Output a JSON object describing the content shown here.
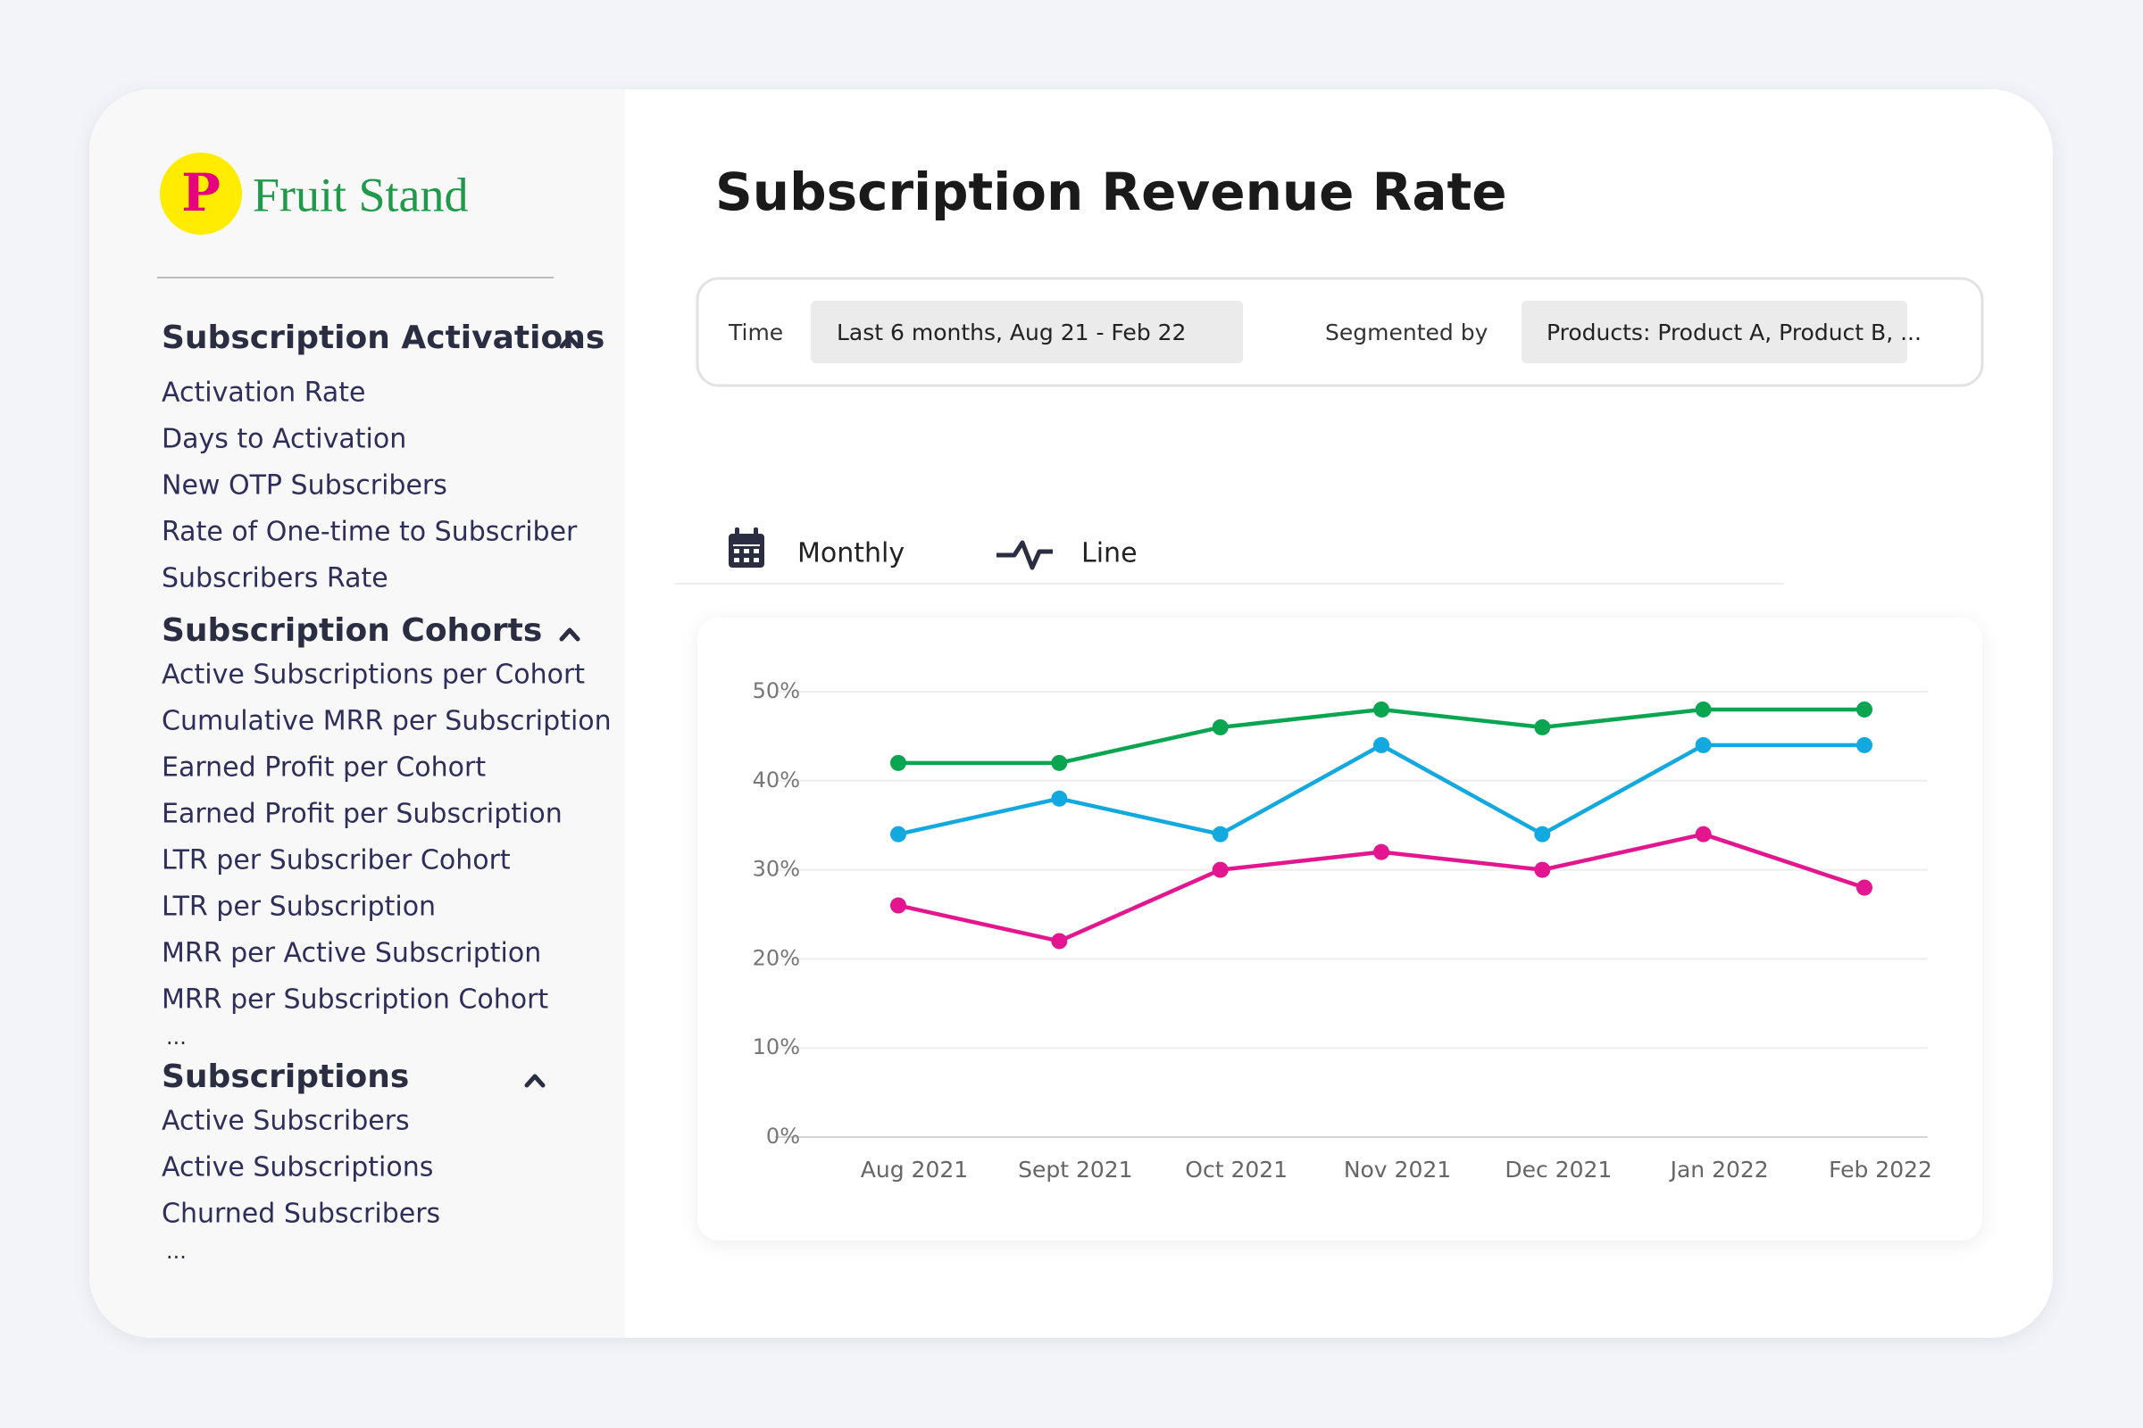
{
  "logo": {
    "letter": "P",
    "name": "Fruit Stand"
  },
  "sidebar": {
    "sections": [
      {
        "title": "Subscription Activations",
        "items": [
          "Activation Rate",
          "Days to Activation",
          "New OTP Subscribers",
          "Rate of One-time to Subscriber",
          "Subscribers Rate"
        ]
      },
      {
        "title": "Subscription Cohorts",
        "items": [
          "Active Subscriptions per Cohort",
          "Cumulative MRR per Subscription",
          "Earned Profit per Cohort",
          "Earned Profit per Subscription",
          "LTR per Subscriber Cohort",
          "LTR per Subscription",
          "MRR per Active Subscription",
          "MRR per Subscription Cohort"
        ],
        "more": "..."
      },
      {
        "title": "Subscriptions",
        "items": [
          "Active Subscribers",
          "Active Subscriptions",
          "Churned Subscribers"
        ],
        "more": "..."
      }
    ]
  },
  "header": {
    "title": "Subscription Revenue Rate"
  },
  "filters": {
    "time_label": "Time",
    "time_value": "Last 6 months, Aug 21 - Feb 22",
    "segment_label": "Segmented by",
    "segment_value": "Products: Product A, Product B, ..."
  },
  "toolbar": {
    "period": "Monthly",
    "chart_kind": "Line"
  },
  "chart_data": {
    "type": "line",
    "categories": [
      "Aug 2021",
      "Sept 2021",
      "Oct 2021",
      "Nov 2021",
      "Dec 2021",
      "Jan 2022",
      "Feb 2022"
    ],
    "series": [
      {
        "color": "#0aa550",
        "values": [
          42,
          42,
          46,
          48,
          46,
          48,
          48
        ]
      },
      {
        "color": "#12a8e0",
        "values": [
          34,
          38,
          34,
          44,
          34,
          44,
          44
        ]
      },
      {
        "color": "#e4168f",
        "values": [
          26,
          22,
          30,
          32,
          30,
          34,
          28
        ]
      }
    ],
    "ylim": [
      0,
      50
    ],
    "yticks": [
      {
        "value": 0,
        "label": "0%"
      },
      {
        "value": 10,
        "label": "10%"
      },
      {
        "value": 20,
        "label": "20%"
      },
      {
        "value": 30,
        "label": "30%"
      },
      {
        "value": 40,
        "label": "40%"
      },
      {
        "value": 50,
        "label": "50%"
      }
    ],
    "grid": true
  }
}
